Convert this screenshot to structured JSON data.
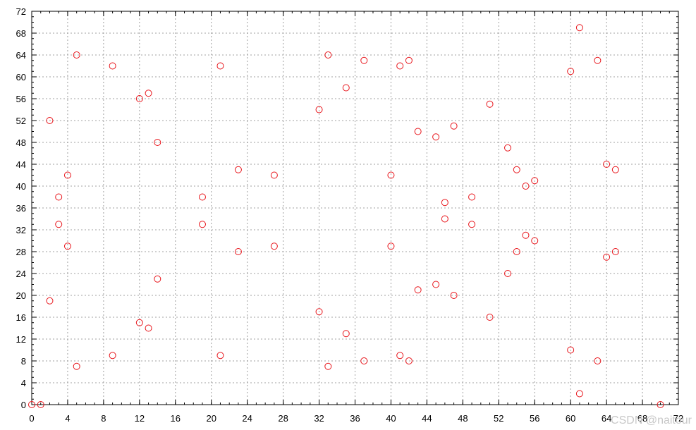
{
  "chart_data": {
    "type": "scatter",
    "title": "",
    "xlabel": "",
    "ylabel": "",
    "xlim": [
      0,
      72
    ],
    "ylim": [
      0,
      72
    ],
    "x_ticks": [
      0,
      4,
      8,
      12,
      16,
      20,
      24,
      28,
      32,
      36,
      40,
      44,
      48,
      52,
      56,
      60,
      64,
      68,
      72
    ],
    "y_ticks": [
      0,
      4,
      8,
      12,
      16,
      20,
      24,
      28,
      32,
      36,
      40,
      44,
      48,
      52,
      56,
      60,
      64,
      68,
      72
    ],
    "grid": true,
    "legend": "none",
    "marker": "open-circle",
    "color": "#e8141a",
    "series": [
      {
        "x": [
          0,
          1,
          2,
          2,
          3,
          3,
          4,
          4,
          5,
          5,
          9,
          9,
          12,
          12,
          13,
          13,
          14,
          14,
          19,
          19,
          21,
          21,
          23,
          23,
          27,
          27,
          32,
          32,
          33,
          33,
          35,
          35,
          37,
          37,
          40,
          40,
          41,
          41,
          42,
          42,
          43,
          43,
          45,
          45,
          46,
          46,
          47,
          47,
          49,
          49,
          51,
          51,
          53,
          53,
          54,
          54,
          55,
          55,
          56,
          56,
          60,
          60,
          61,
          61,
          63,
          63,
          64,
          64,
          65,
          65,
          70
        ],
        "y": [
          0,
          0,
          52,
          19,
          38,
          33,
          42,
          29,
          64,
          7,
          62,
          9,
          56,
          15,
          57,
          14,
          48,
          23,
          38,
          33,
          62,
          9,
          43,
          28,
          42,
          29,
          54,
          17,
          64,
          7,
          58,
          13,
          63,
          8,
          42,
          29,
          62,
          9,
          63,
          8,
          50,
          21,
          49,
          22,
          37,
          34,
          51,
          20,
          38,
          33,
          55,
          16,
          47,
          24,
          43,
          28,
          40,
          31,
          41,
          30,
          61,
          10,
          69,
          2,
          63,
          8,
          44,
          27,
          43,
          28,
          0
        ]
      }
    ]
  },
  "watermark": "CSDN @naitour"
}
